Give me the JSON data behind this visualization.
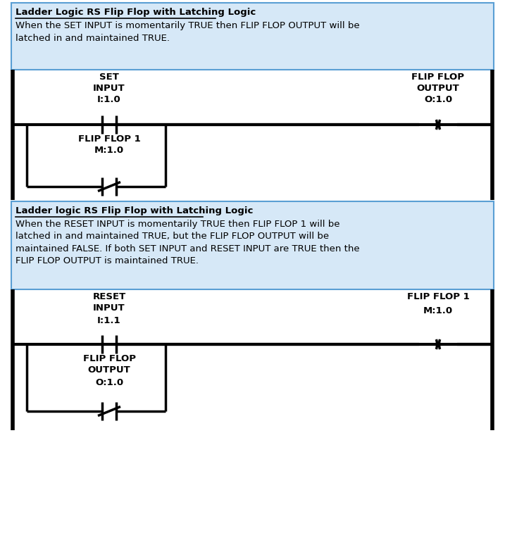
{
  "bg_color": "#ffffff",
  "box_bg": "#d6e8f7",
  "box_border": "#5a9fd4",
  "text_color": "#000000",
  "lw_rail": 4,
  "lw_thick": 3.0,
  "lw_thin": 2.5,
  "rung1_box_title": "Ladder Logic RS Flip Flop with Latching Logic",
  "rung1_box_body": "When the SET INPUT is momentarily TRUE then FLIP FLOP OUTPUT will be\nlatched in and maintained TRUE.",
  "rung2_box_title": "Ladder logic RS Flip Flop with Latching Logic",
  "rung2_box_body": "When the RESET INPUT is momentarily TRUE then FLIP FLOP 1 will be\nlatched in and maintained TRUE, but the FLIP FLOP OUTPUT will be\nmaintained FALSE. If both SET INPUT and RESET INPUT are TRUE then the\nFLIP FLOP OUTPUT is maintained TRUE.",
  "rung1_contact_label": "SET\nINPUT",
  "rung1_contact_addr": "I:1.0",
  "rung1_output_label": "FLIP FLOP\nOUTPUT",
  "rung1_output_addr": "O:1.0",
  "rung1_branch_label": "FLIP FLOP 1\nM:1.0",
  "rung2_contact_label": "RESET\nINPUT",
  "rung2_contact_addr": "I:1.1",
  "rung2_output_label": "FLIP FLOP 1",
  "rung2_output_addr": "M:1.0",
  "rung2_branch_label": "FLIP FLOP\nOUTPUT",
  "rung2_branch_addr": "O:1.0"
}
